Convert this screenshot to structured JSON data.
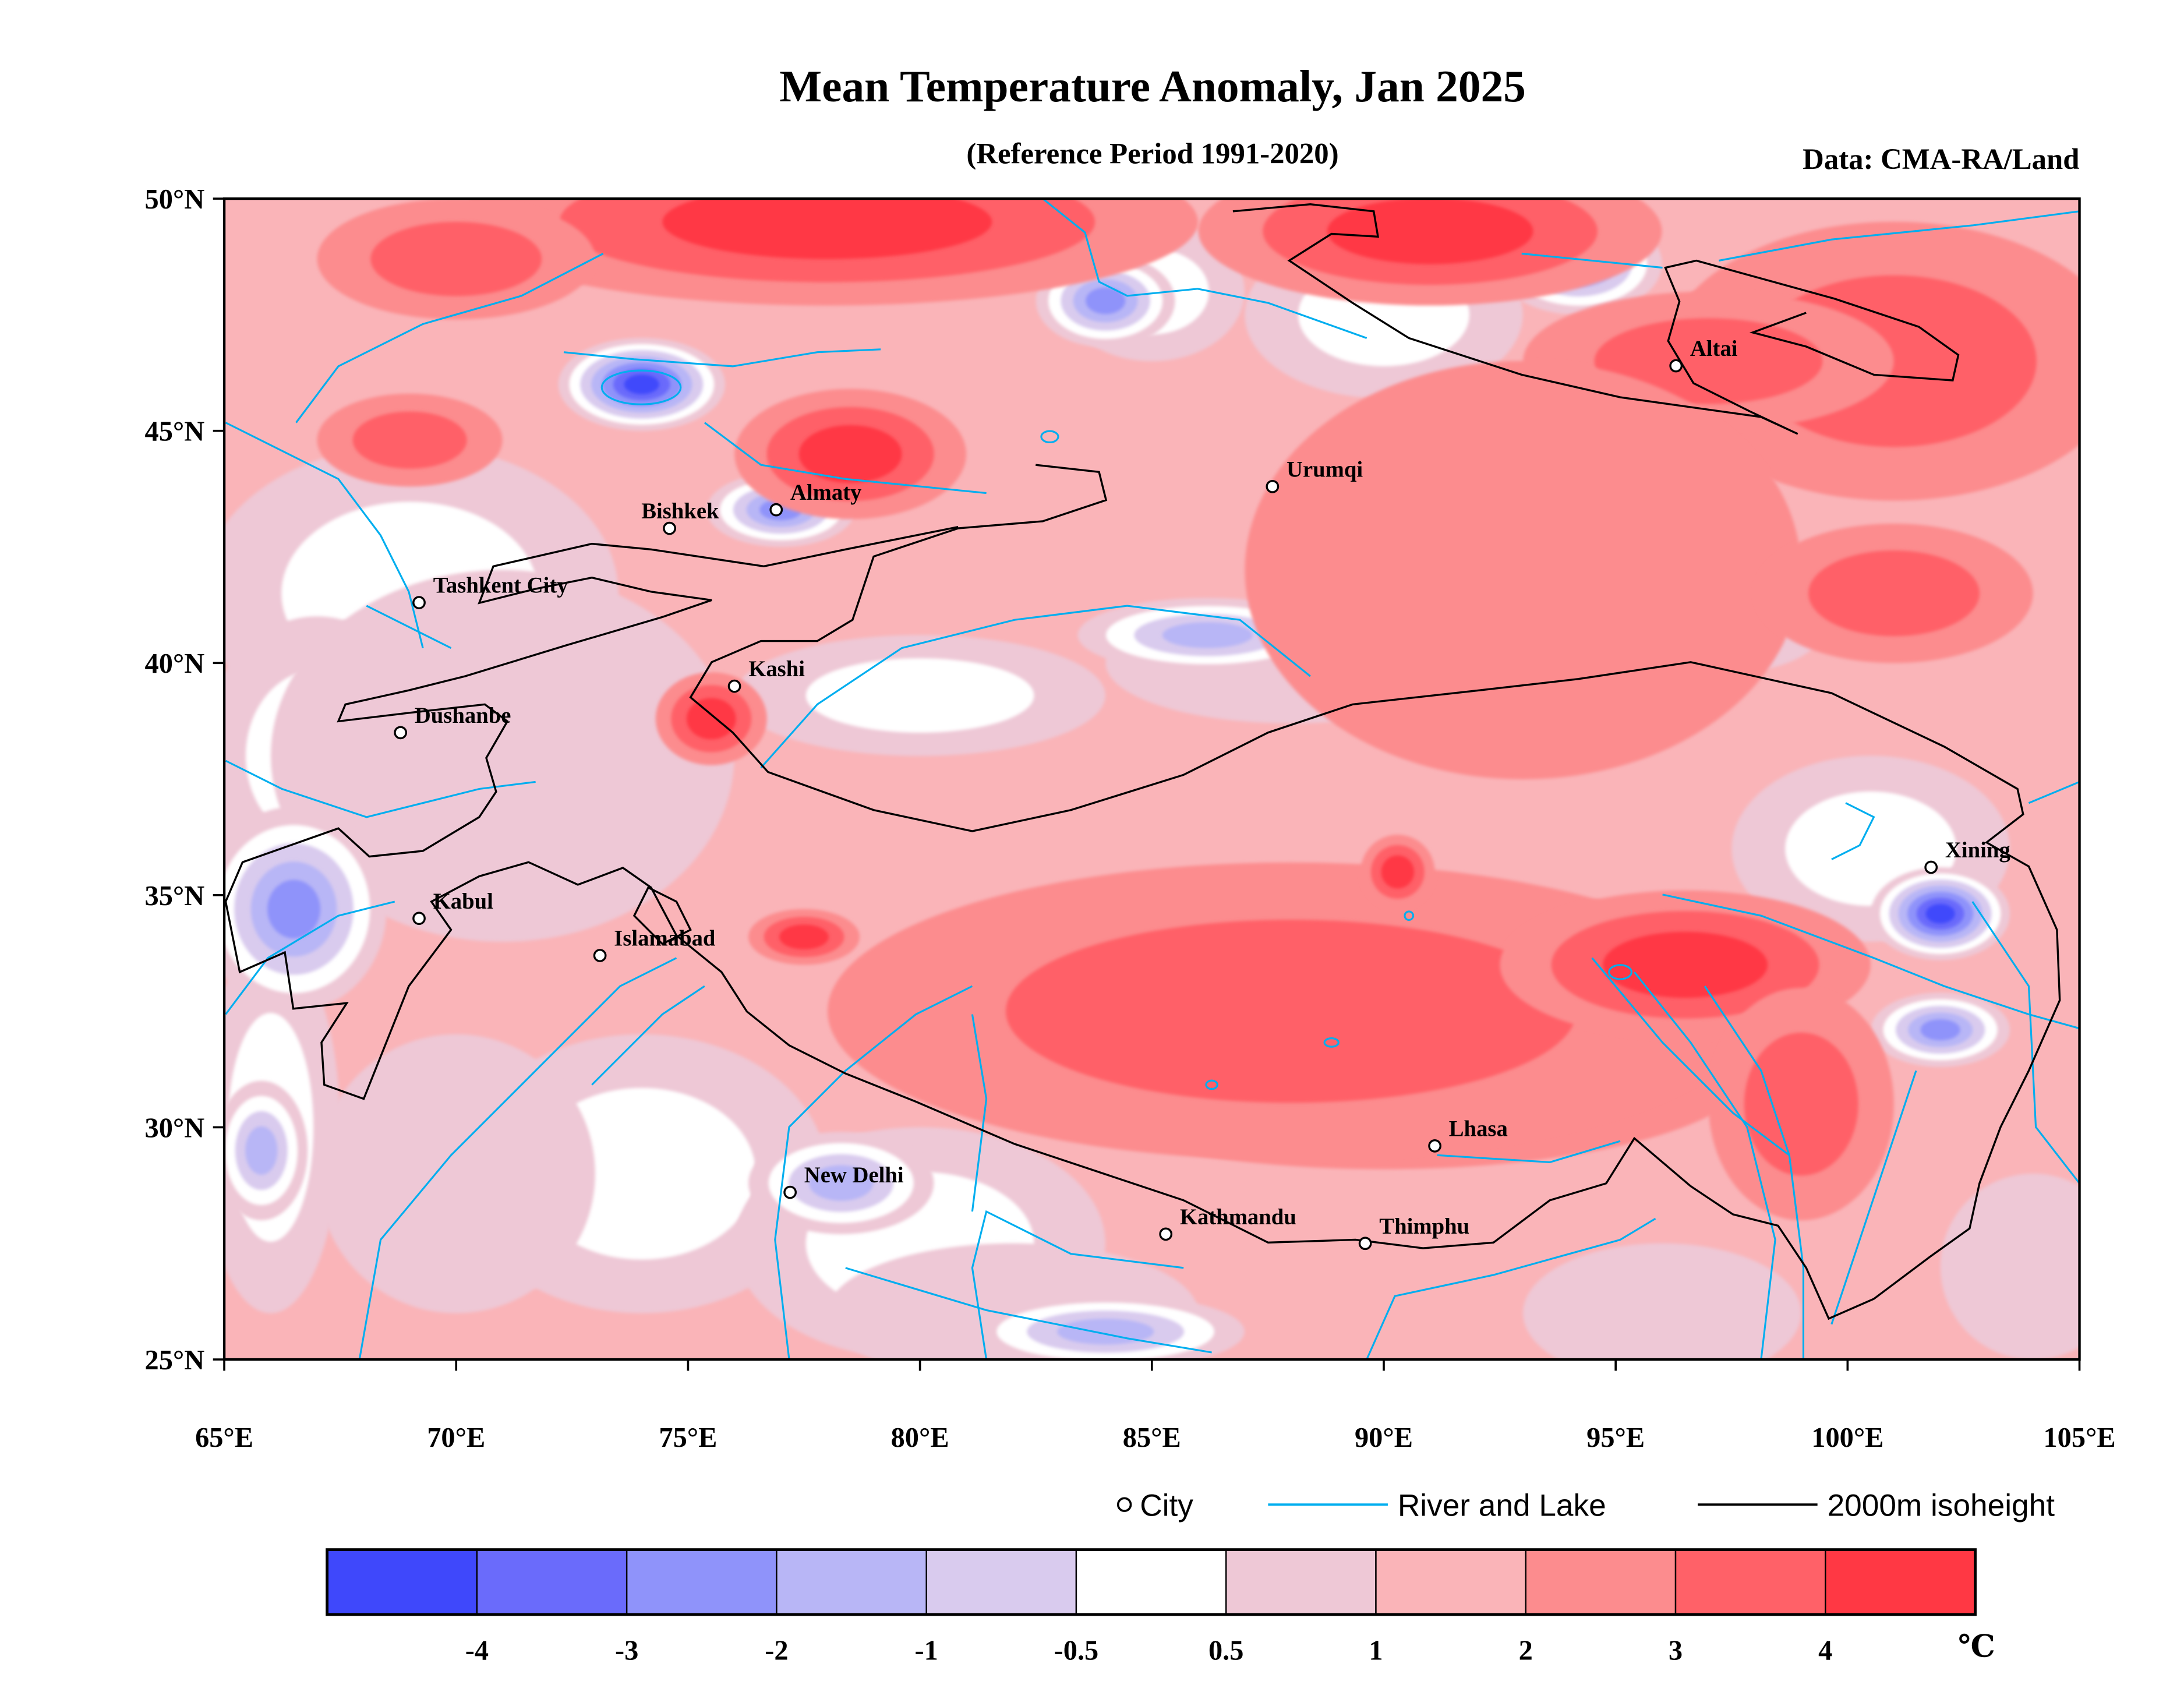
{
  "title": "Mean Temperature Anomaly, Jan 2025",
  "subtitle": "(Reference Period 1991-2020)",
  "source": "Data: CMA-RA/Land",
  "chart_data": {
    "type": "heatmap",
    "map_extent": {
      "lon": [
        65,
        105
      ],
      "lat": [
        25,
        50
      ]
    },
    "x_ticks": [
      {
        "value": 65,
        "label": "65°E"
      },
      {
        "value": 70,
        "label": "70°E"
      },
      {
        "value": 75,
        "label": "75°E"
      },
      {
        "value": 80,
        "label": "80°E"
      },
      {
        "value": 85,
        "label": "85°E"
      },
      {
        "value": 90,
        "label": "90°E"
      },
      {
        "value": 95,
        "label": "95°E"
      },
      {
        "value": 100,
        "label": "100°E"
      },
      {
        "value": 105,
        "label": "105°E"
      }
    ],
    "y_ticks": [
      {
        "value": 50,
        "label": "50°N"
      },
      {
        "value": 45,
        "label": "45°N"
      },
      {
        "value": 40,
        "label": "40°N"
      },
      {
        "value": 35,
        "label": "35°N"
      },
      {
        "value": 30,
        "label": "30°N"
      },
      {
        "value": 25,
        "label": "25°N"
      }
    ],
    "cities": [
      {
        "name": "Altai",
        "lon": 96.3,
        "lat": 46.4
      },
      {
        "name": "Urumqi",
        "lon": 87.6,
        "lat": 43.8
      },
      {
        "name": "Almaty",
        "lon": 76.9,
        "lat": 43.3
      },
      {
        "name": "Bishkek",
        "lon": 74.6,
        "lat": 42.9
      },
      {
        "name": "Tashkent City",
        "lon": 69.2,
        "lat": 41.3
      },
      {
        "name": "Kashi",
        "lon": 76.0,
        "lat": 39.5
      },
      {
        "name": "Dushanbe",
        "lon": 68.8,
        "lat": 38.5
      },
      {
        "name": "Kabul",
        "lon": 69.2,
        "lat": 34.5
      },
      {
        "name": "Islamabad",
        "lon": 73.1,
        "lat": 33.7
      },
      {
        "name": "New Delhi",
        "lon": 77.2,
        "lat": 28.6
      },
      {
        "name": "Kathmandu",
        "lon": 85.3,
        "lat": 27.7
      },
      {
        "name": "Thimphu",
        "lon": 89.6,
        "lat": 27.5
      },
      {
        "name": "Lhasa",
        "lon": 91.1,
        "lat": 29.6
      },
      {
        "name": "Xining",
        "lon": 101.8,
        "lat": 35.6
      }
    ],
    "colorbar": {
      "unit": "℃",
      "boundaries": [
        "-4",
        "-3",
        "-2",
        "-1",
        "-0.5",
        "0.5",
        "1",
        "2",
        "3",
        "4"
      ],
      "colors": [
        "#3f48fb",
        "#6a6bfb",
        "#8f93fa",
        "#b8b6f6",
        "#d9cbee",
        "#ffffff",
        "#eec8d6",
        "#fab4b8",
        "#fc8c8e",
        "#ff6168",
        "#ff3844"
      ]
    }
  },
  "legend": {
    "city": "City",
    "river": "River and Lake",
    "isoheight": "2000m isoheight",
    "river_color": "#00aeef",
    "isoheight_color": "#000000"
  }
}
